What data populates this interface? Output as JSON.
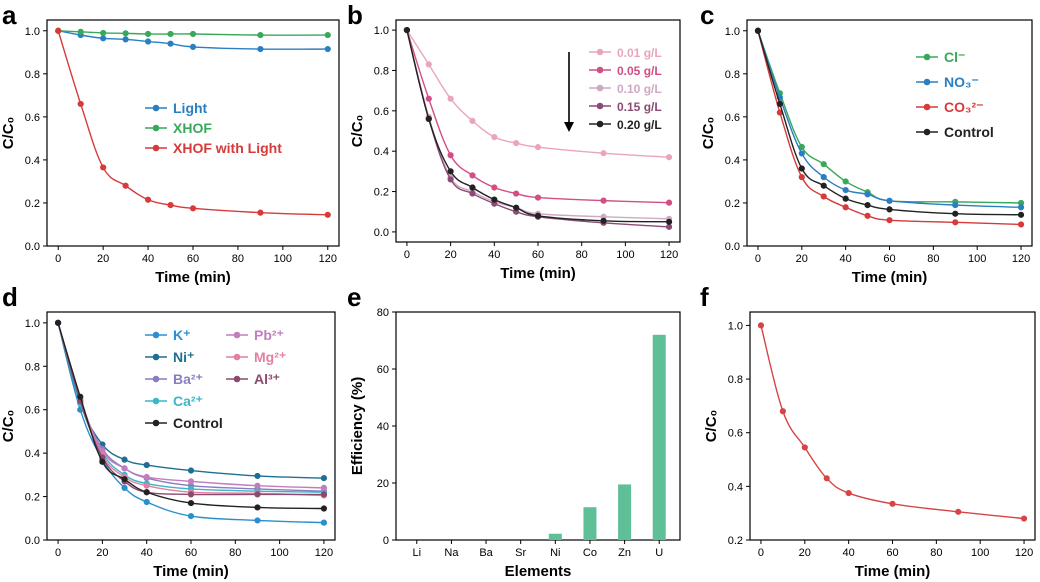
{
  "figure": {
    "panels": [
      "a",
      "b",
      "c",
      "d",
      "e",
      "f"
    ]
  },
  "chart_data": [
    {
      "id": "a",
      "type": "line",
      "xlabel": "Time (min)",
      "ylabel": "C/C₀",
      "xlim": [
        -5,
        125
      ],
      "ylim": [
        0,
        1.05
      ],
      "xticks": [
        "0",
        "20",
        "40",
        "60",
        "80",
        "100",
        "120"
      ],
      "yticks": [
        "0.0",
        "0.2",
        "0.4",
        "0.6",
        "0.8",
        "1.0"
      ],
      "legend_position": "center",
      "series": [
        {
          "name": "Light",
          "color": "#2a7fc2",
          "x": [
            0,
            10,
            20,
            30,
            40,
            50,
            60,
            90,
            120
          ],
          "values": [
            1.0,
            0.98,
            0.965,
            0.96,
            0.95,
            0.94,
            0.925,
            0.915,
            0.915
          ]
        },
        {
          "name": "XHOF",
          "color": "#3aa85a",
          "x": [
            0,
            10,
            20,
            30,
            40,
            50,
            60,
            90,
            120
          ],
          "values": [
            1.0,
            0.995,
            0.99,
            0.988,
            0.985,
            0.985,
            0.985,
            0.98,
            0.98
          ]
        },
        {
          "name": "XHOF with Light",
          "color": "#d63a3a",
          "x": [
            0,
            10,
            20,
            30,
            40,
            50,
            60,
            90,
            120
          ],
          "values": [
            1.0,
            0.66,
            0.365,
            0.28,
            0.215,
            0.19,
            0.175,
            0.155,
            0.145
          ]
        }
      ]
    },
    {
      "id": "b",
      "type": "line",
      "xlabel": "Time (min)",
      "ylabel": "C/C₀",
      "xlim": [
        -5,
        125
      ],
      "ylim": [
        -0.05,
        1.05
      ],
      "xticks": [
        "0",
        "20",
        "40",
        "60",
        "80",
        "100",
        "120"
      ],
      "yticks": [
        "0.0",
        "0.2",
        "0.4",
        "0.6",
        "0.8",
        "1.0"
      ],
      "legend_position": "top-right",
      "series": [
        {
          "name": "0.01 g/L",
          "color": "#eba5bb",
          "x": [
            0,
            10,
            20,
            30,
            40,
            50,
            60,
            90,
            120
          ],
          "values": [
            1.0,
            0.83,
            0.66,
            0.55,
            0.47,
            0.44,
            0.42,
            0.39,
            0.37
          ]
        },
        {
          "name": "0.05 g/L",
          "color": "#d24e84",
          "x": [
            0,
            10,
            20,
            30,
            40,
            50,
            60,
            90,
            120
          ],
          "values": [
            1.0,
            0.66,
            0.38,
            0.28,
            0.22,
            0.19,
            0.17,
            0.155,
            0.145
          ]
        },
        {
          "name": "0.10 g/L",
          "color": "#cfa9c4",
          "x": [
            0,
            10,
            20,
            30,
            40,
            50,
            60,
            90,
            120
          ],
          "values": [
            1.0,
            0.57,
            0.27,
            0.2,
            0.15,
            0.12,
            0.09,
            0.075,
            0.065
          ]
        },
        {
          "name": "0.15 g/L",
          "color": "#8a4b74",
          "x": [
            0,
            10,
            20,
            30,
            40,
            50,
            60,
            90,
            120
          ],
          "values": [
            1.0,
            0.56,
            0.26,
            0.19,
            0.14,
            0.1,
            0.075,
            0.045,
            0.025
          ]
        },
        {
          "name": "0.20 g/L",
          "color": "#222222",
          "x": [
            0,
            10,
            20,
            30,
            40,
            50,
            60,
            90,
            120
          ],
          "values": [
            1.0,
            0.56,
            0.3,
            0.22,
            0.16,
            0.12,
            0.08,
            0.055,
            0.05
          ]
        }
      ]
    },
    {
      "id": "c",
      "type": "line",
      "xlabel": "Time (min)",
      "ylabel": "C/C₀",
      "xlim": [
        -5,
        125
      ],
      "ylim": [
        0,
        1.05
      ],
      "xticks": [
        "0",
        "20",
        "40",
        "60",
        "80",
        "100",
        "120"
      ],
      "yticks": [
        "0.0",
        "0.2",
        "0.4",
        "0.6",
        "0.8",
        "1.0"
      ],
      "legend_position": "top-right",
      "series": [
        {
          "name": "Cl⁻",
          "color": "#3aa85a",
          "x": [
            0,
            10,
            20,
            30,
            40,
            50,
            60,
            90,
            120
          ],
          "values": [
            1.0,
            0.71,
            0.46,
            0.38,
            0.3,
            0.25,
            0.21,
            0.205,
            0.2
          ]
        },
        {
          "name": "NO₃⁻",
          "color": "#2a7fc2",
          "x": [
            0,
            10,
            20,
            30,
            40,
            50,
            60,
            90,
            120
          ],
          "values": [
            1.0,
            0.69,
            0.43,
            0.32,
            0.26,
            0.24,
            0.21,
            0.19,
            0.18
          ]
        },
        {
          "name": "CO₃²⁻",
          "color": "#d63a3a",
          "x": [
            0,
            10,
            20,
            30,
            40,
            50,
            60,
            90,
            120
          ],
          "values": [
            1.0,
            0.62,
            0.32,
            0.23,
            0.18,
            0.14,
            0.12,
            0.11,
            0.1
          ]
        },
        {
          "name": "Control",
          "color": "#222222",
          "x": [
            0,
            10,
            20,
            30,
            40,
            50,
            60,
            90,
            120
          ],
          "values": [
            1.0,
            0.66,
            0.36,
            0.28,
            0.22,
            0.19,
            0.17,
            0.15,
            0.145
          ]
        }
      ]
    },
    {
      "id": "d",
      "type": "line",
      "xlabel": "Time (min)",
      "ylabel": "C/C₀",
      "xlim": [
        -5,
        125
      ],
      "ylim": [
        0,
        1.05
      ],
      "xticks": [
        "0",
        "20",
        "40",
        "60",
        "80",
        "100",
        "120"
      ],
      "yticks": [
        "0.0",
        "0.2",
        "0.4",
        "0.6",
        "0.8",
        "1.0"
      ],
      "legend_position": "top-right",
      "series": [
        {
          "name": "K⁺",
          "color": "#2a8fcf",
          "x": [
            0,
            10,
            20,
            30,
            40,
            60,
            90,
            120
          ],
          "values": [
            1.0,
            0.6,
            0.37,
            0.24,
            0.175,
            0.11,
            0.09,
            0.08
          ]
        },
        {
          "name": "Ni⁺",
          "color": "#1f6f92",
          "x": [
            0,
            10,
            20,
            30,
            40,
            60,
            90,
            120
          ],
          "values": [
            1.0,
            0.63,
            0.44,
            0.37,
            0.345,
            0.32,
            0.295,
            0.285
          ]
        },
        {
          "name": "Ba²⁺",
          "color": "#8a7cc0",
          "x": [
            0,
            10,
            20,
            30,
            40,
            60,
            90,
            120
          ],
          "values": [
            1.0,
            0.64,
            0.42,
            0.33,
            0.285,
            0.25,
            0.235,
            0.225
          ]
        },
        {
          "name": "Ca²⁺",
          "color": "#3ab6c7",
          "x": [
            0,
            10,
            20,
            30,
            40,
            60,
            90,
            120
          ],
          "values": [
            1.0,
            0.63,
            0.4,
            0.3,
            0.26,
            0.235,
            0.225,
            0.22
          ]
        },
        {
          "name": "Pb²⁺",
          "color": "#c27dbf",
          "x": [
            0,
            10,
            20,
            30,
            40,
            60,
            90,
            120
          ],
          "values": [
            1.0,
            0.65,
            0.41,
            0.33,
            0.29,
            0.27,
            0.25,
            0.24
          ]
        },
        {
          "name": "Mg²⁺",
          "color": "#e37fa0",
          "x": [
            0,
            10,
            20,
            30,
            40,
            60,
            90,
            120
          ],
          "values": [
            1.0,
            0.65,
            0.39,
            0.29,
            0.25,
            0.22,
            0.215,
            0.205
          ]
        },
        {
          "name": "Al³⁺",
          "color": "#8a4b6e",
          "x": [
            0,
            10,
            20,
            30,
            40,
            60,
            90,
            120
          ],
          "values": [
            1.0,
            0.64,
            0.38,
            0.27,
            0.22,
            0.21,
            0.21,
            0.21
          ]
        },
        {
          "name": "Control",
          "color": "#222222",
          "x": [
            0,
            10,
            20,
            30,
            40,
            60,
            90,
            120
          ],
          "values": [
            1.0,
            0.66,
            0.36,
            0.28,
            0.22,
            0.17,
            0.15,
            0.145
          ]
        }
      ]
    },
    {
      "id": "e",
      "type": "bar",
      "xlabel": "Elements",
      "ylabel": "Efficiency (%)",
      "ylim": [
        0,
        80
      ],
      "yticks": [
        "0",
        "20",
        "40",
        "60",
        "80"
      ],
      "color": "#5fbf97",
      "categories": [
        "Li",
        "Na",
        "Ba",
        "Sr",
        "Ni",
        "Co",
        "Zn",
        "U"
      ],
      "values": [
        0,
        0,
        0,
        0,
        2.2,
        11.5,
        19.5,
        72
      ]
    },
    {
      "id": "f",
      "type": "line",
      "xlabel": "Time (min)",
      "ylabel": "C/C₀",
      "xlim": [
        -5,
        125
      ],
      "ylim": [
        0.2,
        1.05
      ],
      "xticks": [
        "0",
        "20",
        "40",
        "60",
        "80",
        "100",
        "120"
      ],
      "yticks": [
        "0.2",
        "0.4",
        "0.6",
        "0.8",
        "1.0"
      ],
      "series": [
        {
          "name": "",
          "color": "#d64545",
          "x": [
            0,
            10,
            20,
            30,
            40,
            60,
            90,
            120
          ],
          "values": [
            1.0,
            0.68,
            0.545,
            0.43,
            0.375,
            0.335,
            0.305,
            0.28
          ]
        }
      ]
    }
  ]
}
